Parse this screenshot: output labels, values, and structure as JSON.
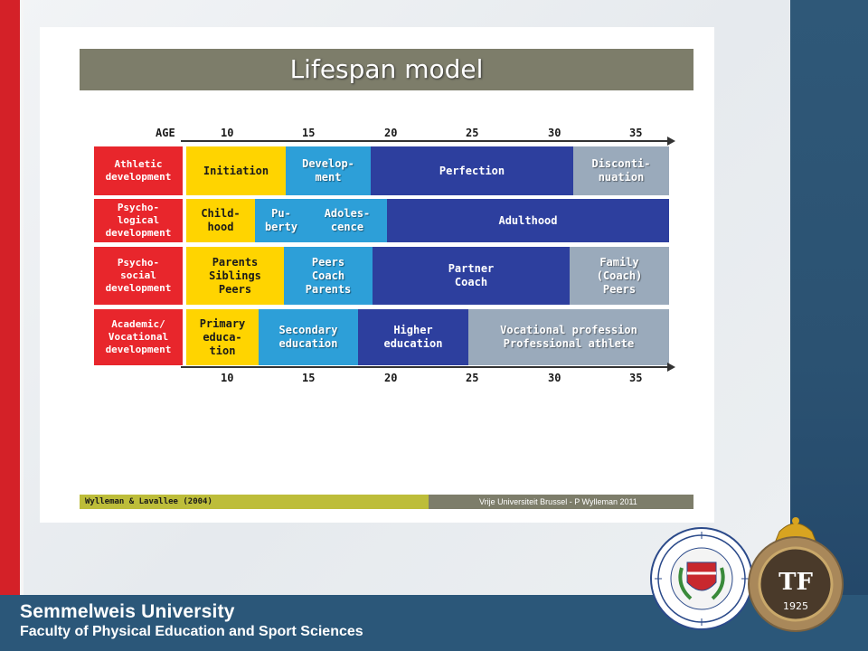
{
  "slide": {
    "title": "Lifespan model",
    "age_label": "AGE",
    "ages_top": [
      "10",
      "15",
      "20",
      "25",
      "30",
      "35"
    ],
    "ages_bottom": [
      "10",
      "15",
      "20",
      "25",
      "30",
      "35"
    ],
    "rows": [
      {
        "header": "Athletic\ndevelopment",
        "cells": [
          "Initiation",
          "Develop-\nment",
          "Perfection",
          "Disconti-\nnuation"
        ]
      },
      {
        "header": "Psycho-\nlogical\ndevelopment",
        "cells": [
          "Child-\nhood",
          "Pu-\nberty",
          "Adoles-\ncence",
          "Adulthood"
        ]
      },
      {
        "header": "Psycho-\nsocial\ndevelopment",
        "cells": [
          "Parents\nSiblings\nPeers",
          "Peers\nCoach\nParents",
          "Partner\nCoach",
          "Family\n(Coach)\nPeers"
        ]
      },
      {
        "header": "Academic/\nVocational\ndevelopment",
        "cells": [
          "Primary\neduca-\ntion",
          "Secondary\neducation",
          "Higher\neducation",
          "Vocational profession\nProfessional athlete"
        ]
      }
    ],
    "citation": "Wylleman & Lavallee (2004)",
    "credit": "Vrije Universiteit Brussel - P Wylleman 2011"
  },
  "footer": {
    "university": "Semmelweis University",
    "faculty": "Faculty of Physical Education and Sport Sciences"
  },
  "logos": {
    "right_seal_text": "TF",
    "right_seal_year": "1925"
  },
  "colors": {
    "red": "#e8262c",
    "yellow": "#ffd400",
    "cyan": "#2d9fd8",
    "navy": "#2d3f9e",
    "grey": "#9aaabb",
    "footer_blue": "#2b5779"
  }
}
